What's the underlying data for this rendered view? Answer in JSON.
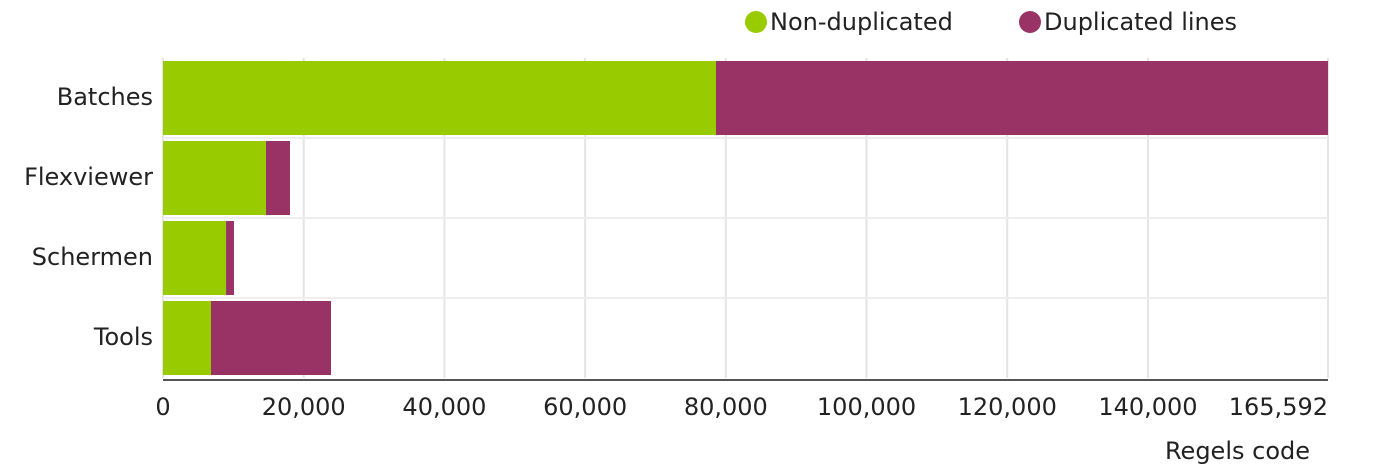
{
  "chart_data": {
    "type": "stacked_barh",
    "x_label": "Regels code",
    "categories": [
      "Batches",
      "Flexviewer",
      "Schermen",
      "Tools"
    ],
    "series": [
      {
        "name": "Non-duplicated",
        "color": "#99cc00",
        "values": [
          78600,
          14640,
          8960,
          6820
        ]
      },
      {
        "name": "Duplicated lines",
        "color": "#993366",
        "values": [
          86992,
          3410,
          1130,
          17060
        ]
      }
    ],
    "xlim": [
      0,
      165592
    ],
    "xticks": [
      0,
      {
        "value": 20000,
        "label": "20,000"
      },
      {
        "value": 40000,
        "label": "40,000"
      },
      {
        "value": 60000,
        "label": "60,000"
      },
      {
        "value": 80000,
        "label": "80,000"
      },
      {
        "value": 100000,
        "label": "100,000"
      },
      {
        "value": 120000,
        "label": "120,000"
      },
      {
        "value": 140000,
        "label": "140,000"
      },
      {
        "value": 165592,
        "label": "165,592"
      }
    ],
    "grid": true,
    "legend": "top"
  }
}
